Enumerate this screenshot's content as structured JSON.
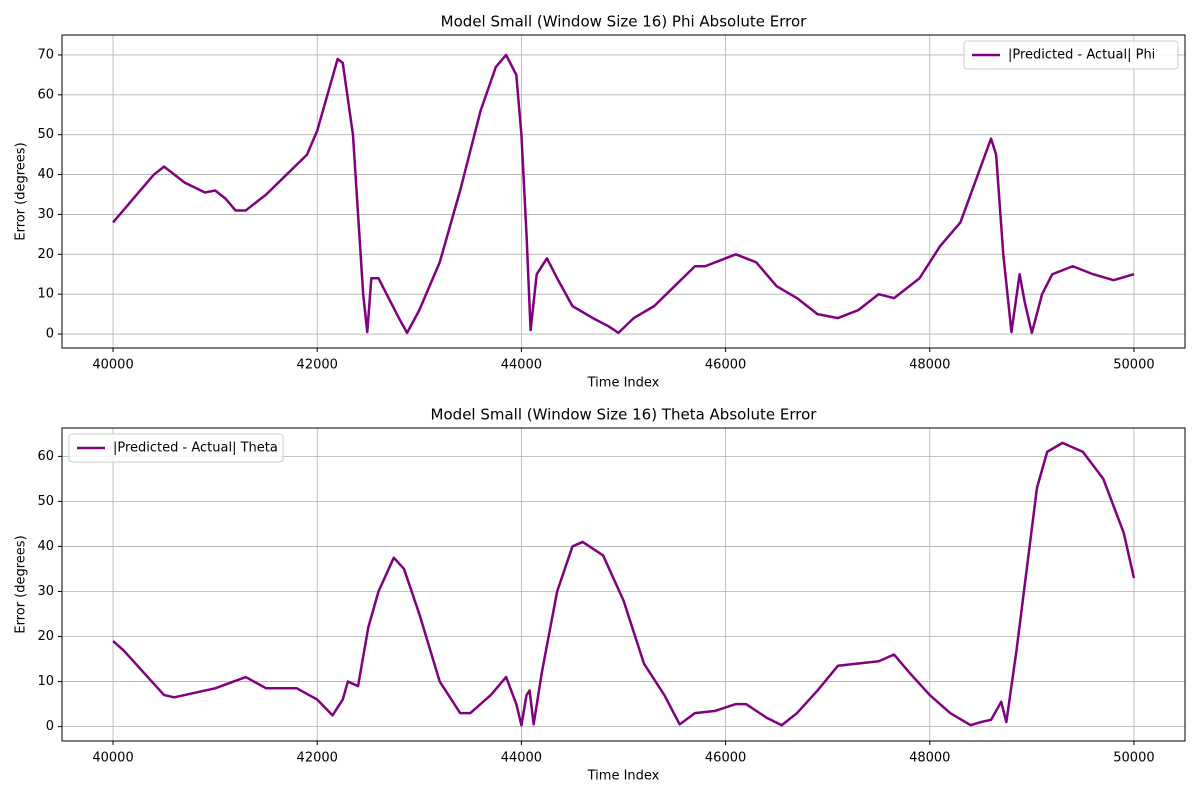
{
  "chart_data": [
    {
      "type": "line",
      "title": "Model Small (Window Size 16) Phi Absolute Error",
      "x_label": "Time Index",
      "y_label": "Error (degrees)",
      "x": [
        40000,
        40200,
        40400,
        40500,
        40700,
        40900,
        41000,
        41100,
        41200,
        41300,
        41500,
        41700,
        41900,
        42000,
        42100,
        42200,
        42250,
        42350,
        42400,
        42450,
        42490,
        42530,
        42600,
        42700,
        42800,
        42880,
        43000,
        43200,
        43400,
        43600,
        43750,
        43850,
        43950,
        44000,
        44050,
        44090,
        44150,
        44250,
        44350,
        44500,
        44700,
        44850,
        44950,
        45100,
        45300,
        45500,
        45700,
        45800,
        46000,
        46100,
        46300,
        46500,
        46700,
        46900,
        47100,
        47300,
        47500,
        47650,
        47900,
        48100,
        48300,
        48500,
        48600,
        48650,
        48720,
        48800,
        48880,
        48930,
        49000,
        49100,
        49200,
        49400,
        49600,
        49800,
        50000
      ],
      "series": [
        {
          "name": "|Predicted - Actual| Phi",
          "color": "#800080",
          "values": [
            28,
            34,
            40,
            42,
            38,
            35.5,
            36,
            34,
            31,
            31,
            35,
            40,
            45,
            51,
            60,
            69,
            68,
            50,
            30,
            10,
            0.5,
            14,
            14,
            9,
            4,
            0.3,
            6,
            18,
            36,
            56,
            67,
            70,
            65,
            50,
            25,
            1,
            15,
            19,
            14,
            7,
            4,
            2,
            0.3,
            4,
            7,
            12,
            17,
            17,
            19,
            20,
            18,
            12,
            9,
            5,
            4,
            6,
            10,
            9,
            14,
            22,
            28,
            42,
            49,
            45,
            20,
            0.5,
            15,
            8,
            0.3,
            10,
            15,
            17,
            15,
            13.5,
            15
          ]
        }
      ],
      "xlim": [
        39500,
        50500
      ],
      "ylim": [
        -3.5,
        75
      ],
      "xticks": [
        40000,
        42000,
        44000,
        46000,
        48000,
        50000
      ],
      "yticks": [
        0,
        10,
        20,
        30,
        40,
        50,
        60,
        70
      ],
      "grid": true,
      "legend": "upper right"
    },
    {
      "type": "line",
      "title": "Model Small (Window Size 16) Theta Absolute Error",
      "x_label": "Time Index",
      "y_label": "Error (degrees)",
      "x": [
        40000,
        40100,
        40300,
        40500,
        40600,
        40800,
        41000,
        41300,
        41500,
        41800,
        42000,
        42150,
        42250,
        42300,
        42400,
        42500,
        42600,
        42750,
        42850,
        43000,
        43200,
        43400,
        43500,
        43700,
        43850,
        43950,
        44000,
        44050,
        44080,
        44120,
        44200,
        44350,
        44500,
        44600,
        44800,
        45000,
        45200,
        45400,
        45550,
        45700,
        45900,
        46100,
        46200,
        46400,
        46550,
        46700,
        46900,
        47100,
        47300,
        47500,
        47650,
        47800,
        48000,
        48200,
        48400,
        48500,
        48600,
        48700,
        48750,
        48850,
        48950,
        49050,
        49150,
        49300,
        49500,
        49700,
        49900,
        50000
      ],
      "series": [
        {
          "name": "|Predicted - Actual| Theta",
          "color": "#800080",
          "values": [
            19,
            17,
            12,
            7,
            6.5,
            7.5,
            8.5,
            11,
            8.5,
            8.5,
            6,
            2.5,
            6,
            10,
            9,
            22,
            30,
            37.5,
            35,
            25,
            10,
            3,
            3,
            7,
            11,
            5,
            0.3,
            7,
            8,
            0.5,
            12,
            30,
            40,
            41,
            38,
            28,
            14,
            7,
            0.5,
            3,
            3.5,
            5,
            5,
            2,
            0.3,
            3,
            8,
            13.5,
            14,
            14.5,
            16,
            12,
            7,
            3,
            0.3,
            1,
            1.5,
            5.5,
            1,
            17,
            35,
            53,
            61,
            63,
            61,
            55,
            43,
            33
          ]
        }
      ],
      "xlim": [
        39500,
        50500
      ],
      "ylim": [
        -3.2,
        66.3
      ],
      "xticks": [
        40000,
        42000,
        44000,
        46000,
        48000,
        50000
      ],
      "yticks": [
        0,
        10,
        20,
        30,
        40,
        50,
        60
      ],
      "grid": true,
      "legend": "upper left"
    }
  ]
}
